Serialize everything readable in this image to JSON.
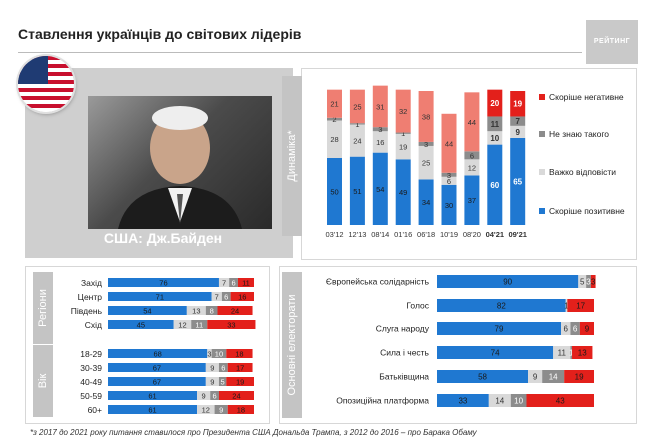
{
  "header": {
    "title": "Ставлення українців до світових лідерів",
    "logo": "РЕЙТИНГ"
  },
  "photo": {
    "caption": "США: Дж.Байден"
  },
  "footnote": "*з 2017 до 2021 року питання ставилося про Президента США Дональда Трампа, з 2012 до 2016 – про Барака Обаму",
  "colors": {
    "positive": "#1f78d1",
    "hard": "#d9d9d9",
    "dontknow": "#8c8c8c",
    "negative": "#e3201b",
    "oldNegative": "#ef7e72"
  },
  "chart_data": [
    {
      "type": "bar",
      "title": "Динаміка*",
      "categories": [
        "03'12",
        "12'13",
        "08'14",
        "01'16",
        "06'18",
        "10'19",
        "08'20",
        "04'21",
        "09'21"
      ],
      "highlighted": [
        "04'21",
        "09'21"
      ],
      "series": [
        {
          "name": "Скоріше позитивне",
          "values": [
            50,
            51,
            54,
            49,
            34,
            30,
            37,
            60,
            65
          ],
          "color": "#1f78d1"
        },
        {
          "name": "Важко відповісти",
          "values": [
            28,
            24,
            16,
            19,
            25,
            6,
            12,
            10,
            9
          ],
          "color": "#d9d9d9"
        },
        {
          "name": "Не знаю такого",
          "values": [
            2,
            1,
            3,
            1,
            3,
            3,
            6,
            11,
            7
          ],
          "color": "#8c8c8c"
        },
        {
          "name": "Скоріше негативне",
          "values": [
            21,
            25,
            31,
            32,
            38,
            44,
            44,
            20,
            19
          ],
          "color": "#e3201b"
        }
      ],
      "legend_order": [
        "Скоріше негативне",
        "Не знаю такого",
        "Важко відповісти",
        "Скоріше позитивне"
      ],
      "legend_position": "right",
      "ylim": [
        0,
        100
      ]
    },
    {
      "type": "bar",
      "orientation": "horizontal",
      "groups": [
        {
          "label": "Регіони",
          "categories": [
            "Захід",
            "Центр",
            "Південь",
            "Схід"
          ]
        },
        {
          "label": "Вік",
          "categories": [
            "18-29",
            "30-39",
            "40-49",
            "50-59",
            "60+"
          ]
        }
      ],
      "series": [
        {
          "name": "Скоріше позитивне",
          "values": [
            76,
            71,
            54,
            45,
            68,
            67,
            67,
            61,
            61
          ]
        },
        {
          "name": "Важко відповісти",
          "values": [
            7,
            7,
            13,
            12,
            3,
            9,
            9,
            9,
            12
          ]
        },
        {
          "name": "Не знаю такого",
          "values": [
            6,
            6,
            8,
            11,
            10,
            6,
            5,
            6,
            9
          ]
        },
        {
          "name": "Скоріше негативне",
          "values": [
            11,
            16,
            24,
            33,
            18,
            17,
            19,
            24,
            18
          ]
        }
      ],
      "xlim": [
        0,
        100
      ]
    },
    {
      "type": "bar",
      "orientation": "horizontal",
      "title": "Основні електорати",
      "categories": [
        "Європейська солідарність",
        "Голос",
        "Слуга народу",
        "Сила і честь",
        "Батьківщина",
        "Опозиційна платформа"
      ],
      "series": [
        {
          "name": "Скоріше позитивне",
          "values": [
            90,
            82,
            79,
            74,
            58,
            33
          ]
        },
        {
          "name": "Важко відповісти",
          "values": [
            5,
            1,
            6,
            11,
            9,
            14
          ]
        },
        {
          "name": "Не знаю такого",
          "values": [
            3,
            0,
            6,
            1,
            14,
            10
          ]
        },
        {
          "name": "Скоріше негативне",
          "values": [
            3,
            17,
            9,
            13,
            19,
            43
          ]
        }
      ],
      "xlim": [
        0,
        100
      ]
    }
  ]
}
